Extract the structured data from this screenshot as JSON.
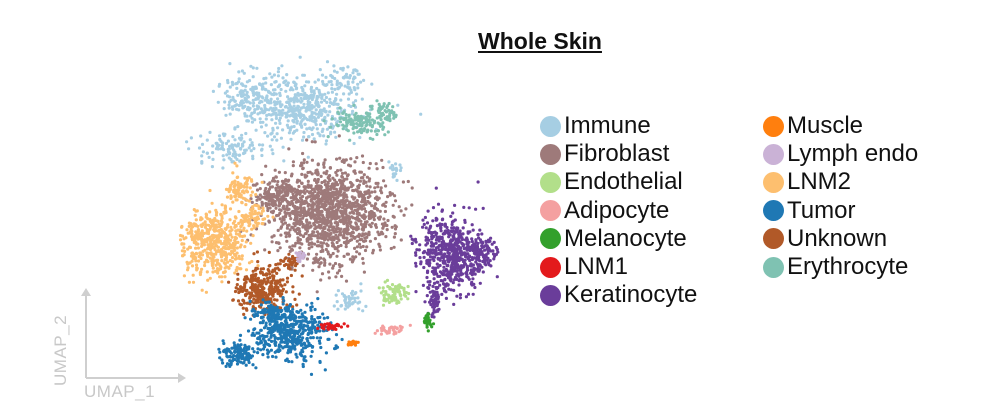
{
  "chart_data": {
    "type": "scatter",
    "title": "Whole Skin",
    "xlabel": "UMAP_1",
    "ylabel": "UMAP_2",
    "legend_position": "right",
    "grid": false,
    "legend_columns": [
      [
        {
          "name": "Immune",
          "color": "#a6cee3"
        },
        {
          "name": "Fibroblast",
          "color": "#9e7a7a"
        },
        {
          "name": "Endothelial",
          "color": "#b2df8a"
        },
        {
          "name": "Adipocyte",
          "color": "#f4a0a0"
        },
        {
          "name": "Melanocyte",
          "color": "#33a02c"
        },
        {
          "name": "LNM1",
          "color": "#e31a1c"
        },
        {
          "name": "Keratinocyte",
          "color": "#6a3d9a"
        }
      ],
      [
        {
          "name": "Muscle",
          "color": "#ff7f0e"
        },
        {
          "name": "Lymph endo",
          "color": "#cab2d6"
        },
        {
          "name": "LNM2",
          "color": "#fdbf6f"
        },
        {
          "name": "Tumor",
          "color": "#1f78b4"
        },
        {
          "name": "Unknown",
          "color": "#b15928"
        },
        {
          "name": "Erythrocyte",
          "color": "#7fc2b2"
        }
      ]
    ]
  }
}
